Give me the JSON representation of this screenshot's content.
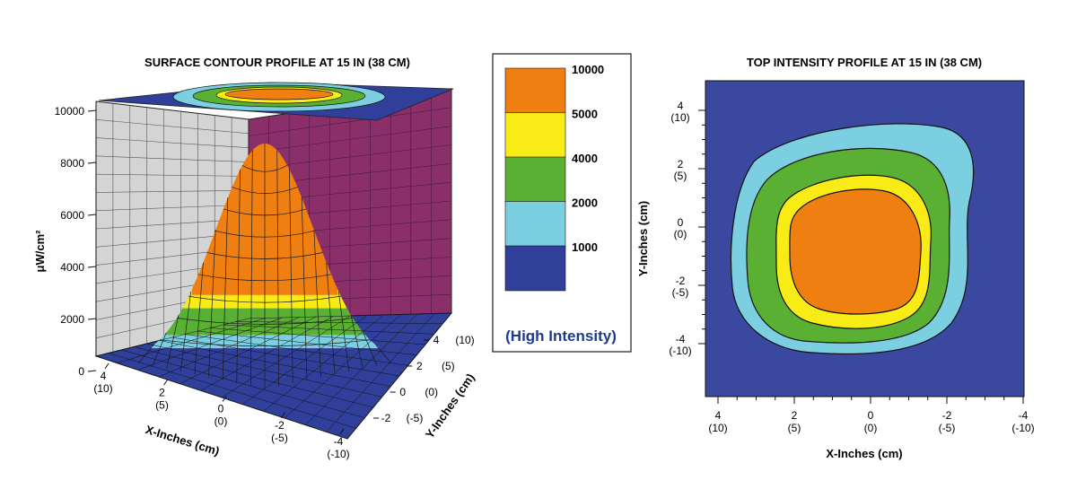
{
  "chart_data": [
    {
      "type": "surface3d",
      "title": "SURFACE CONTOUR PROFILE AT 15 IN (38 CM)",
      "zlabel": "μW/cm²",
      "xlabel": "X-Inches (cm)",
      "ylabel": "Y-Inches (cm)",
      "z_ticks": [
        "0",
        "2000",
        "4000",
        "6000",
        "8000",
        "10000"
      ],
      "x_ticks": [
        {
          "in": "4",
          "cm": "(10)"
        },
        {
          "in": "2",
          "cm": "(5)"
        },
        {
          "in": "0",
          "cm": "(0)"
        },
        {
          "in": "-2",
          "cm": "(-5)"
        },
        {
          "in": "-4",
          "cm": "(-10)"
        }
      ],
      "y_ticks": [
        {
          "in": "4",
          "cm": "(10)"
        },
        {
          "in": "2",
          "cm": "(5)"
        },
        {
          "in": "0",
          "cm": "(0)"
        },
        {
          "in": "-2",
          "cm": "(-5)"
        }
      ],
      "peak_value": 9000,
      "peak_x_in": 0,
      "peak_y_in": 0
    },
    {
      "type": "heatmap",
      "title": "TOP INTENSITY PROFILE AT 15 IN (38 CM)",
      "xlabel": "X-Inches (cm)",
      "ylabel": "Y-Inches (cm)",
      "x_ticks": [
        {
          "in": "4",
          "cm": "(10)"
        },
        {
          "in": "2",
          "cm": "(5)"
        },
        {
          "in": "0",
          "cm": "(0)"
        },
        {
          "in": "-2",
          "cm": "(-5)"
        },
        {
          "in": "-4",
          "cm": "(-10)"
        }
      ],
      "y_ticks": [
        {
          "in": "4",
          "cm": "(10)"
        },
        {
          "in": "2",
          "cm": "(5)"
        },
        {
          "in": "0",
          "cm": "(0)"
        },
        {
          "in": "-2",
          "cm": "(-5)"
        },
        {
          "in": "-4",
          "cm": "(-10)"
        }
      ]
    }
  ],
  "legend": {
    "levels": [
      {
        "value": "10000",
        "color": "#f07f12"
      },
      {
        "value": "5000",
        "color": "#f9ec16"
      },
      {
        "value": "4000",
        "color": "#5ab033"
      },
      {
        "value": "2000",
        "color": "#7ccfe0"
      },
      {
        "value": "1000",
        "color": "#2f3f9a"
      }
    ],
    "note": "(High Intensity)",
    "note_color": "#1e3a8a"
  },
  "colors": {
    "background_level": "#3a48a0",
    "left_wall": "#d4d4d4",
    "right_wall": "#8b2f6a",
    "mesh_line": "#1a1a1a"
  }
}
